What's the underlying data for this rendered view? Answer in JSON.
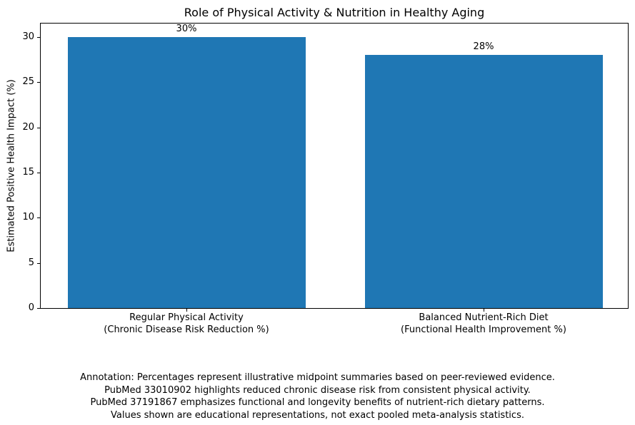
{
  "chart_data": {
    "type": "bar",
    "title": "Role of Physical Activity & Nutrition in Healthy Aging",
    "xlabel": "",
    "ylabel": "Estimated Positive Health Impact (%)",
    "categories": [
      [
        "Regular Physical Activity",
        "(Chronic Disease Risk Reduction %)"
      ],
      [
        "Balanced Nutrient-Rich Diet",
        "(Functional Health Improvement %)"
      ]
    ],
    "values": [
      30,
      28
    ],
    "bar_labels": [
      "30%",
      "28%"
    ],
    "yticks": [
      0,
      5,
      10,
      15,
      20,
      25,
      30
    ],
    "ylim": [
      0,
      31.5
    ],
    "bar_color": "#1f77b4",
    "axis_color": "#000000",
    "background_color": "#ffffff",
    "grid": false,
    "legend": null,
    "annotation_lines": [
      "Annotation: Percentages represent illustrative midpoint summaries based on peer-reviewed evidence.",
      "PubMed 33010902 highlights reduced chronic disease risk from consistent physical activity.",
      "PubMed 37191867 emphasizes functional and longevity benefits of nutrient-rich dietary patterns.",
      "Values shown are educational representations, not exact pooled meta-analysis statistics."
    ]
  }
}
